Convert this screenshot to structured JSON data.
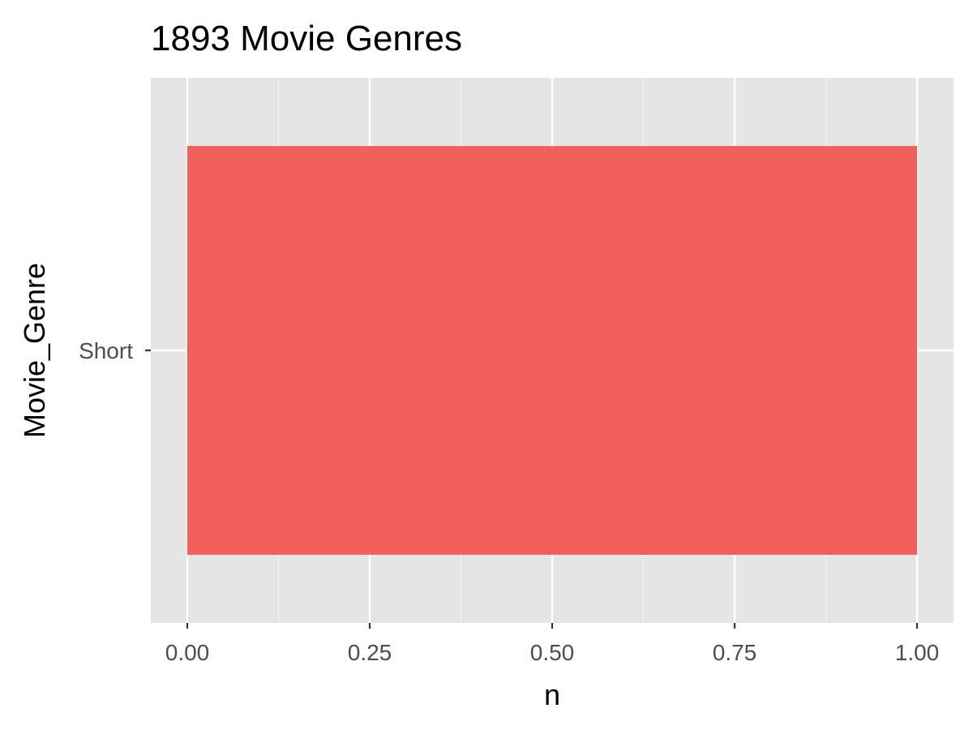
{
  "chart_data": {
    "type": "bar",
    "orientation": "horizontal",
    "title": "1893 Movie Genres",
    "xlabel": "n",
    "ylabel": "Movie_Genre",
    "categories": [
      "Short"
    ],
    "values": [
      1
    ],
    "xlim": [
      0,
      1
    ],
    "x_ticks": [
      "0.00",
      "0.25",
      "0.50",
      "0.75",
      "1.00"
    ],
    "grid": true,
    "legend": "none",
    "colors": {
      "bar": "#F2605B",
      "panel_background": "#E5E5E5",
      "grid_major": "#FFFFFF",
      "grid_minor": "#F2F2F2",
      "tick_text": "#4D4D4D",
      "tick_mark": "#333333"
    }
  }
}
